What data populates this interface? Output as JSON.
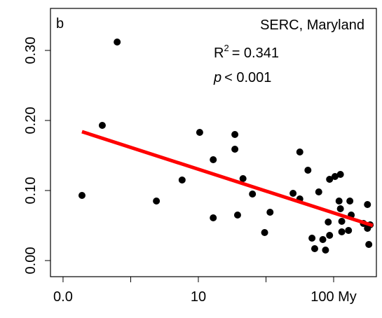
{
  "chart_data": {
    "type": "scatter",
    "panel_label": "b",
    "site": "SERC, Maryland",
    "r2": {
      "base": "R",
      "sup": "2",
      "rest": "= 0.341"
    },
    "pval": {
      "italic": "p",
      "rest": "< 0.001"
    },
    "x": [
      0.14,
      0.29,
      0.4,
      0.69,
      0.88,
      1.01,
      1.11,
      1.11,
      1.27,
      1.27,
      1.29,
      1.33,
      1.4,
      1.49,
      1.53,
      1.7,
      1.75,
      1.75,
      1.81,
      1.84,
      1.86,
      1.89,
      1.92,
      1.94,
      1.96,
      1.97,
      1.97,
      2.01,
      2.05,
      2.04,
      2.05,
      2.06,
      2.06,
      2.11,
      2.12,
      2.13,
      2.22,
      2.25,
      2.25,
      2.26,
      2.27
    ],
    "values": [
      0.093,
      0.193,
      0.312,
      0.085,
      0.115,
      0.183,
      0.144,
      0.061,
      0.18,
      0.159,
      0.065,
      0.117,
      0.095,
      0.04,
      0.069,
      0.096,
      0.155,
      0.088,
      0.129,
      0.032,
      0.017,
      0.098,
      0.03,
      0.015,
      0.055,
      0.036,
      0.116,
      0.12,
      0.123,
      0.085,
      0.074,
      0.056,
      0.041,
      0.043,
      0.085,
      0.065,
      0.053,
      0.08,
      0.046,
      0.023,
      0.051
    ],
    "color": "#000000",
    "fit": {
      "x": [
        0.14,
        2.29
      ],
      "y": [
        0.184,
        0.05
      ],
      "color": "#ff0000"
    },
    "xlim": [
      -0.093,
      2.316
    ],
    "ylim": [
      -0.023,
      0.36
    ],
    "xticks": [
      {
        "value": 0,
        "label": "0.0"
      },
      {
        "value": 1,
        "label": "10"
      },
      {
        "value": 2,
        "label": "100 My"
      }
    ],
    "xminor_ticks": [
      0.5,
      1.5
    ],
    "yticks": [
      {
        "value": 0,
        "label": "0.00"
      },
      {
        "value": 0.1,
        "label": "0.10"
      },
      {
        "value": 0.2,
        "label": "0.20"
      },
      {
        "value": 0.3,
        "label": "0.30"
      }
    ]
  }
}
